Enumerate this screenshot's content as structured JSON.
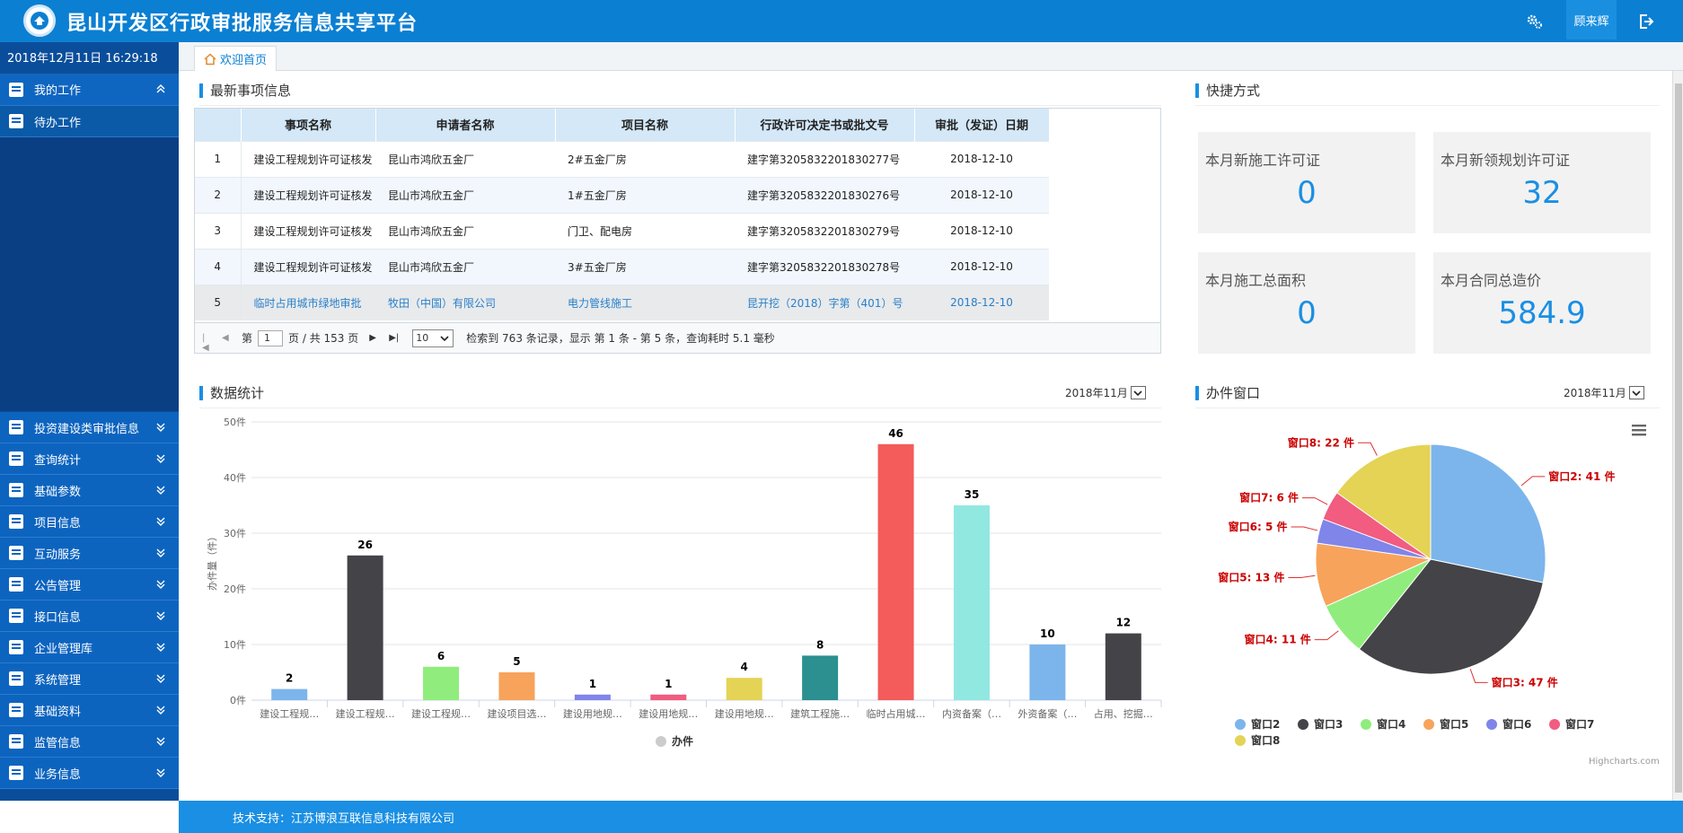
{
  "header": {
    "title": "昆山开发区行政审批服务信息共享平台",
    "user": "顾来辉"
  },
  "sidebar": {
    "datetime": "2018年12月11日 16:29:18",
    "my_work": "我的工作",
    "todo": "待办工作",
    "items": [
      {
        "label": "投资建设类审批信息"
      },
      {
        "label": "查询统计"
      },
      {
        "label": "基础参数"
      },
      {
        "label": "项目信息"
      },
      {
        "label": "互动服务"
      },
      {
        "label": "公告管理"
      },
      {
        "label": "接口信息"
      },
      {
        "label": "企业管理库"
      },
      {
        "label": "系统管理"
      },
      {
        "label": "基础资料"
      },
      {
        "label": "监管信息"
      },
      {
        "label": "业务信息"
      }
    ]
  },
  "tab": {
    "label": "欢迎首页"
  },
  "latest": {
    "title": "最新事项信息",
    "columns": [
      "",
      "事项名称",
      "申请者名称",
      "项目名称",
      "行政许可决定书或批文号",
      "审批（发证）日期"
    ],
    "rows": [
      {
        "no": "1",
        "item": "建设工程规划许可证核发",
        "applicant": "昆山市鸿欣五金厂",
        "project": "2#五金厂房",
        "doc": "建字第3205832201830277号",
        "date": "2018-12-10"
      },
      {
        "no": "2",
        "item": "建设工程规划许可证核发",
        "applicant": "昆山市鸿欣五金厂",
        "project": "1#五金厂房",
        "doc": "建字第3205832201830276号",
        "date": "2018-12-10"
      },
      {
        "no": "3",
        "item": "建设工程规划许可证核发",
        "applicant": "昆山市鸿欣五金厂",
        "project": "门卫、配电房",
        "doc": "建字第3205832201830279号",
        "date": "2018-12-10"
      },
      {
        "no": "4",
        "item": "建设工程规划许可证核发",
        "applicant": "昆山市鸿欣五金厂",
        "project": "3#五金厂房",
        "doc": "建字第3205832201830278号",
        "date": "2018-12-10"
      },
      {
        "no": "5",
        "item": "临时占用城市绿地审批",
        "applicant": "牧田（中国）有限公司",
        "project": "电力管线施工",
        "doc": "昆开挖（2018）字第（401）号",
        "date": "2018-12-10"
      }
    ],
    "pager": {
      "page_prefix": "第",
      "page": "1",
      "page_suffix": "页 / 共 153 页",
      "size": "10",
      "summary": "检索到 763 条记录，显示 第 1 条 - 第 5 条，查询耗时 5.1 毫秒"
    }
  },
  "shortcuts": {
    "title": "快捷方式",
    "cards": [
      {
        "label": "本月新施工许可证",
        "value": "0"
      },
      {
        "label": "本月新领规划许可证",
        "value": "32"
      },
      {
        "label": "本月施工总面积",
        "value": "0"
      },
      {
        "label": "本月合同总造价",
        "value": "584.9"
      }
    ]
  },
  "stats": {
    "title": "数据统计",
    "month": "2018年11月"
  },
  "windows": {
    "title": "办件窗口",
    "month": "2018年11月",
    "credit": "Highcharts.com"
  },
  "footer": {
    "text": "技术支持：江苏博浪互联信息科技有限公司"
  },
  "chart_data": [
    {
      "type": "bar",
      "categories": [
        "建设工程规…",
        "建设工程规…",
        "建设工程规…",
        "建设项目选…",
        "建设用地规…",
        "建设用地规…",
        "建设用地规…",
        "建筑工程施…",
        "临时占用城…",
        "内资备案（…",
        "外资备案（…",
        "占用、挖掘…"
      ],
      "values": [
        2,
        26,
        6,
        5,
        1,
        1,
        4,
        8,
        46,
        35,
        10,
        12
      ],
      "colors": [
        "#7cb5ec",
        "#434348",
        "#90ed7d",
        "#f7a35c",
        "#8085e9",
        "#f15c80",
        "#e4d354",
        "#2b908f",
        "#f45b5b",
        "#91e8e1",
        "#7cb5ec",
        "#434348"
      ],
      "ylabel": "办件量（件）",
      "yticks": [
        "0件",
        "10件",
        "20件",
        "30件",
        "40件",
        "50件"
      ],
      "ylim": [
        0,
        50
      ],
      "legend": "办件",
      "grid": true
    },
    {
      "type": "pie",
      "slices": [
        {
          "name": "窗口2",
          "value": 41,
          "label": "窗口2: 41 件",
          "color": "#7cb5ec"
        },
        {
          "name": "窗口3",
          "value": 47,
          "label": "窗口3: 47 件",
          "color": "#434348"
        },
        {
          "name": "窗口4",
          "value": 11,
          "label": "窗口4: 11 件",
          "color": "#90ed7d"
        },
        {
          "name": "窗口5",
          "value": 13,
          "label": "窗口5: 13 件",
          "color": "#f7a35c"
        },
        {
          "name": "窗口6",
          "value": 5,
          "label": "窗口6: 5 件",
          "color": "#8085e9"
        },
        {
          "name": "窗口7",
          "value": 6,
          "label": "窗口7: 6 件",
          "color": "#f15c80"
        },
        {
          "name": "窗口8",
          "value": 22,
          "label": "窗口8: 22 件",
          "color": "#e4d354"
        }
      ],
      "legend_position": "bottom"
    }
  ]
}
